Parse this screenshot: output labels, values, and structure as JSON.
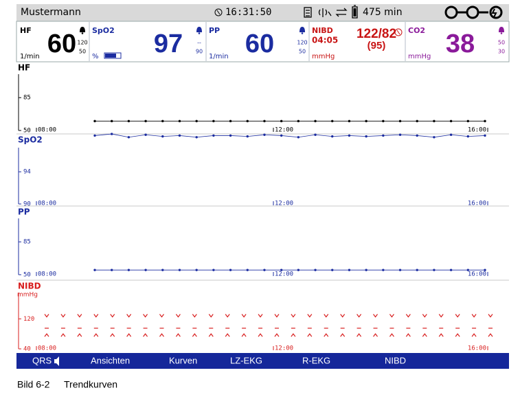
{
  "status_bar": {
    "patient": "Mustermann",
    "time": "16:31:50",
    "battery": "475 min"
  },
  "parameters": [
    {
      "label": "HF",
      "unit": "1/min",
      "value": "60",
      "alarm_high": "120",
      "alarm_low": "50",
      "color": "#000000"
    },
    {
      "label": "SpO2",
      "unit": "%",
      "value": "97",
      "alarm_high": "--",
      "alarm_low": "90",
      "color": "#1b2ca0"
    },
    {
      "label": "PP",
      "unit": "1/min",
      "value": "60",
      "alarm_high": "120",
      "alarm_low": "50",
      "color": "#1b2ca0"
    },
    {
      "label": "NIBD",
      "time": "04:05",
      "unit": "mmHg",
      "value": "122/82",
      "mean": "(95)",
      "color": "#c81414"
    },
    {
      "label": "CO2",
      "unit": "mmHg",
      "value": "38",
      "alarm_high": "50",
      "alarm_low": "30",
      "color": "#8a1a9a"
    }
  ],
  "trends": [
    {
      "label": "HF",
      "color": "#000000",
      "ylim": [
        50,
        110
      ],
      "yticks": [
        50,
        85
      ],
      "x_labels": [
        "08:00",
        "12:00",
        "16:00"
      ],
      "values": [
        60,
        60,
        60,
        60,
        60,
        60,
        60,
        60,
        60,
        60,
        60,
        60,
        60,
        60,
        60,
        60,
        60,
        60,
        60,
        60,
        60,
        60,
        60,
        60
      ]
    },
    {
      "label": "SpO2",
      "color": "#1b2ca0",
      "ylim": [
        90,
        97
      ],
      "yticks": [
        90,
        94
      ],
      "x_labels": [
        "08:00",
        "12:00",
        "16:00"
      ],
      "values": [
        98.5,
        98.7,
        98.3,
        98.6,
        98.4,
        98.5,
        98.3,
        98.5,
        98.5,
        98.4,
        98.6,
        98.5,
        98.3,
        98.6,
        98.4,
        98.5,
        98.4,
        98.5,
        98.6,
        98.5,
        98.3,
        98.6,
        98.4,
        98.5
      ]
    },
    {
      "label": "PP",
      "color": "#1b2ca0",
      "ylim": [
        50,
        110
      ],
      "yticks": [
        50,
        85
      ],
      "x_labels": [
        "08:00",
        "12:00",
        "16:00"
      ],
      "values": [
        55,
        55,
        55,
        55,
        55,
        55,
        55,
        55,
        55,
        55,
        55,
        55,
        55,
        55,
        55,
        55,
        55,
        55,
        55,
        55,
        55,
        55,
        55,
        55
      ]
    },
    {
      "label": "NIBD",
      "unit": "mmHg",
      "color": "#d81e1e",
      "ylim": [
        40,
        190
      ],
      "yticks": [
        40,
        120
      ],
      "x_labels": [
        "08:00",
        "12:00",
        "16:00"
      ],
      "series": [
        {
          "marker": "v",
          "values": [
            125,
            125,
            125,
            125,
            125,
            125,
            125,
            125,
            125,
            125,
            125,
            125,
            125,
            125,
            125,
            125,
            125,
            125,
            125,
            125,
            125,
            125,
            125,
            125,
            125,
            125,
            125,
            125
          ]
        },
        {
          "marker": "-",
          "values": [
            95,
            95,
            95,
            95,
            95,
            95,
            95,
            95,
            95,
            95,
            95,
            95,
            95,
            95,
            95,
            95,
            95,
            95,
            95,
            95,
            95,
            95,
            95,
            95,
            95,
            95,
            95,
            95
          ]
        },
        {
          "marker": "^",
          "values": [
            80,
            80,
            80,
            80,
            80,
            80,
            80,
            80,
            80,
            80,
            80,
            80,
            80,
            80,
            80,
            80,
            80,
            80,
            80,
            80,
            80,
            80,
            80,
            80,
            80,
            80,
            80,
            80
          ]
        }
      ]
    }
  ],
  "menu": [
    "QRS",
    "Ansichten",
    "Kurven",
    "LZ-EKG",
    "R-EKG",
    "NIBD"
  ],
  "caption": {
    "number": "Bild 6-2",
    "title": "Trendkurven"
  }
}
